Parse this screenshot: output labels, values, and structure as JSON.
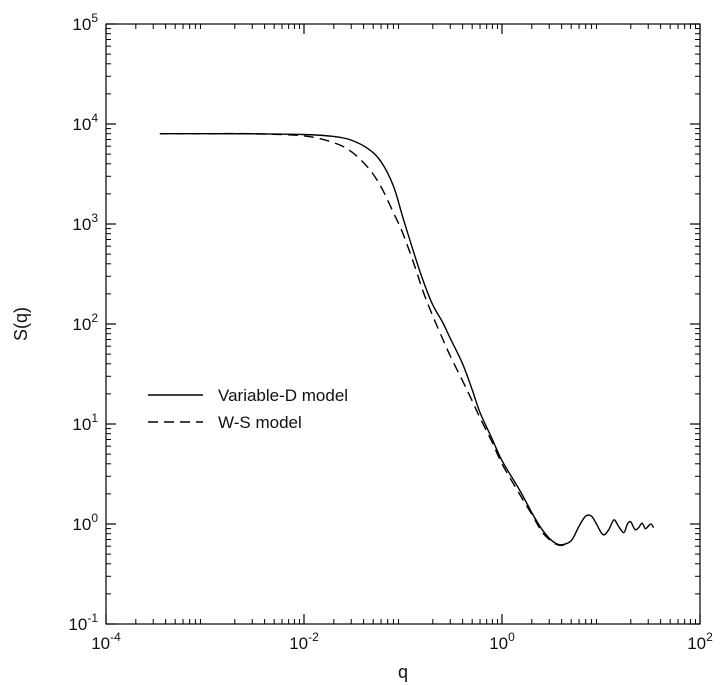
{
  "chart_data": {
    "type": "line",
    "title": "",
    "xlabel": "q",
    "ylabel": "S(q)",
    "xscale": "log",
    "yscale": "log",
    "xlim": [
      0.0001,
      100
    ],
    "ylim": [
      0.1,
      100000
    ],
    "grid": false,
    "legend_position": "middle-left",
    "x_ticks": [
      {
        "value": 0.0001,
        "base": "10",
        "exp": "-4"
      },
      {
        "value": 0.01,
        "base": "10",
        "exp": "-2"
      },
      {
        "value": 1,
        "base": "10",
        "exp": "0"
      },
      {
        "value": 100,
        "base": "10",
        "exp": "2"
      }
    ],
    "y_ticks": [
      {
        "value": 0.1,
        "base": "10",
        "exp": "-1"
      },
      {
        "value": 1,
        "base": "10",
        "exp": "0"
      },
      {
        "value": 10,
        "base": "10",
        "exp": "1"
      },
      {
        "value": 100,
        "base": "10",
        "exp": "2"
      },
      {
        "value": 1000,
        "base": "10",
        "exp": "3"
      },
      {
        "value": 10000,
        "base": "10",
        "exp": "4"
      },
      {
        "value": 100000,
        "base": "10",
        "exp": "5"
      }
    ],
    "series": [
      {
        "name": "Variable-D model",
        "style": "solid",
        "color": "#000000",
        "points": [
          [
            0.00035,
            8000
          ],
          [
            0.001,
            8000
          ],
          [
            0.003,
            7990
          ],
          [
            0.01,
            7850
          ],
          [
            0.02,
            7500
          ],
          [
            0.03,
            6900
          ],
          [
            0.045,
            5600
          ],
          [
            0.06,
            4200
          ],
          [
            0.08,
            2400
          ],
          [
            0.1,
            1150
          ],
          [
            0.13,
            500
          ],
          [
            0.16,
            270
          ],
          [
            0.2,
            155
          ],
          [
            0.25,
            105
          ],
          [
            0.3,
            72
          ],
          [
            0.4,
            40
          ],
          [
            0.5,
            22
          ],
          [
            0.6,
            13
          ],
          [
            0.8,
            7
          ],
          [
            1.0,
            4.3
          ],
          [
            1.5,
            2.2
          ],
          [
            2.0,
            1.3
          ],
          [
            2.5,
            0.9
          ],
          [
            3.0,
            0.72
          ],
          [
            3.5,
            0.64
          ],
          [
            4.0,
            0.62
          ],
          [
            5.0,
            0.68
          ],
          [
            6.0,
            0.95
          ],
          [
            7.0,
            1.2
          ],
          [
            8.0,
            1.2
          ],
          [
            9.0,
            1.0
          ],
          [
            10.5,
            0.78
          ],
          [
            12.0,
            0.88
          ],
          [
            13.5,
            1.1
          ],
          [
            15.0,
            0.95
          ],
          [
            17.0,
            0.82
          ],
          [
            18.5,
            1.0
          ],
          [
            20.0,
            1.05
          ],
          [
            22.0,
            0.88
          ],
          [
            24.0,
            0.92
          ],
          [
            26.0,
            1.02
          ],
          [
            28.0,
            0.9
          ],
          [
            30.0,
            0.95
          ],
          [
            32.0,
            1.0
          ],
          [
            34.0,
            0.92
          ]
        ]
      },
      {
        "name": "W-S model",
        "style": "dashed",
        "color": "#000000",
        "points": [
          [
            0.00035,
            8000
          ],
          [
            0.001,
            8000
          ],
          [
            0.003,
            7980
          ],
          [
            0.01,
            7600
          ],
          [
            0.02,
            6500
          ],
          [
            0.03,
            5300
          ],
          [
            0.045,
            3600
          ],
          [
            0.06,
            2350
          ],
          [
            0.08,
            1300
          ],
          [
            0.1,
            800
          ],
          [
            0.13,
            390
          ],
          [
            0.16,
            210
          ],
          [
            0.2,
            120
          ],
          [
            0.25,
            72
          ],
          [
            0.3,
            48
          ],
          [
            0.4,
            27
          ],
          [
            0.5,
            17
          ],
          [
            0.6,
            11.5
          ],
          [
            0.8,
            6.5
          ],
          [
            1.0,
            4.0
          ],
          [
            1.5,
            2.0
          ],
          [
            2.0,
            1.25
          ],
          [
            2.5,
            0.85
          ],
          [
            3.0,
            0.7
          ],
          [
            3.5,
            0.63
          ],
          [
            4.0,
            0.61
          ],
          [
            4.5,
            0.64
          ]
        ]
      }
    ]
  }
}
